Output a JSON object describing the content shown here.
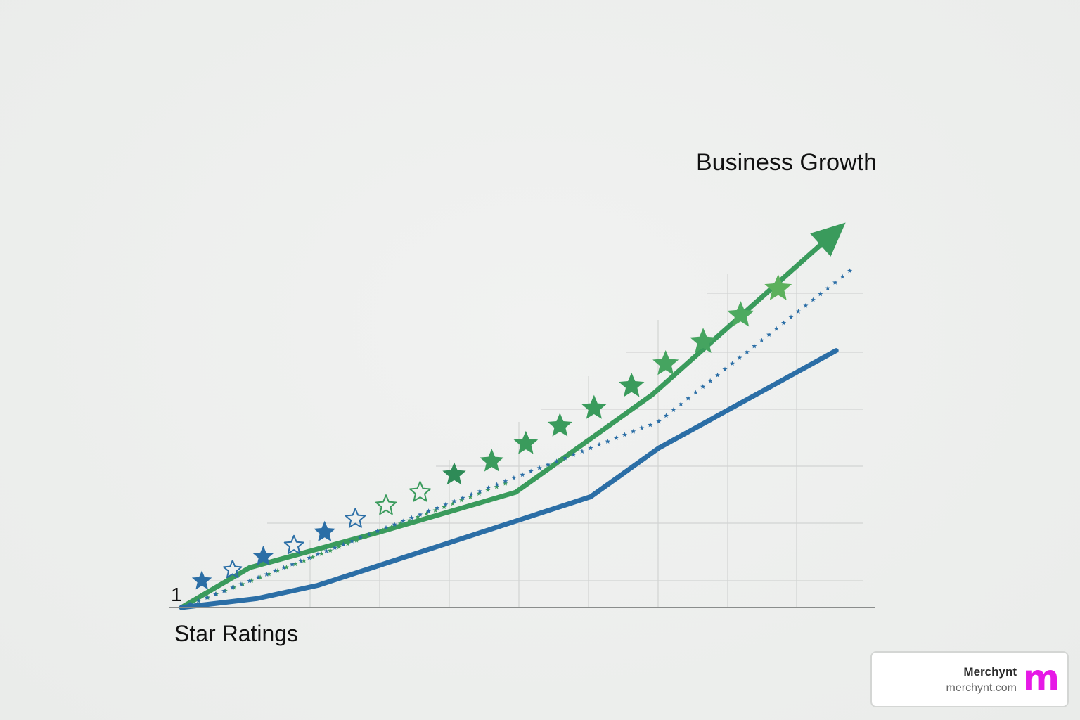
{
  "chart_data": {
    "type": "line",
    "xlabel": "Star Ratings",
    "ylabel": "",
    "y_tick_label": "1",
    "annotation": "Business Growth",
    "xlim": [
      0,
      10
    ],
    "ylim": [
      0,
      10
    ],
    "grid": true,
    "series": [
      {
        "style": "solid",
        "color": "#3a9b5c",
        "arrow": true,
        "x": [
          0,
          1.0,
          2.9,
          4.9,
          6.9,
          9.6
        ],
        "y": [
          0,
          0.9,
          1.7,
          2.6,
          4.8,
          8.5
        ]
      },
      {
        "style": "dotted-stars",
        "color": "#3a9b5c",
        "x": [
          0,
          4.75
        ],
        "y": [
          0,
          2.8
        ]
      },
      {
        "style": "dotted-stars",
        "color": "#2b6ea6",
        "x": [
          0,
          7.0,
          9.8
        ],
        "y": [
          0,
          4.2,
          7.6
        ]
      },
      {
        "style": "solid",
        "color": "#2b6ea6",
        "x": [
          0,
          1.1,
          2.0,
          3.0,
          4.9,
          6.0,
          7.0,
          9.6
        ],
        "y": [
          0,
          0.2,
          0.5,
          1.0,
          1.95,
          2.5,
          3.6,
          5.8
        ]
      }
    ],
    "star_markers": [
      {
        "x": 0.3,
        "y": 0.6,
        "fill": "#2b6ea6",
        "outline": false
      },
      {
        "x": 0.75,
        "y": 0.85,
        "fill": "#2b6ea6",
        "outline": true
      },
      {
        "x": 1.2,
        "y": 1.15,
        "fill": "#2b6ea6",
        "outline": false
      },
      {
        "x": 1.65,
        "y": 1.4,
        "fill": "#2b6ea6",
        "outline": true
      },
      {
        "x": 2.1,
        "y": 1.7,
        "fill": "#2b6ea6",
        "outline": false
      },
      {
        "x": 2.55,
        "y": 2.0,
        "fill": "#2b6ea6",
        "outline": true
      },
      {
        "x": 3.0,
        "y": 2.3,
        "fill": "#3a9b5c",
        "outline": true
      },
      {
        "x": 3.5,
        "y": 2.6,
        "fill": "#3a9b5c",
        "outline": true
      },
      {
        "x": 4.0,
        "y": 3.0,
        "fill": "#2e8b57",
        "outline": false
      },
      {
        "x": 4.55,
        "y": 3.3,
        "fill": "#3a9b5c",
        "outline": false
      },
      {
        "x": 5.05,
        "y": 3.7,
        "fill": "#3a9b5c",
        "outline": false
      },
      {
        "x": 5.55,
        "y": 4.1,
        "fill": "#3a9b5c",
        "outline": false
      },
      {
        "x": 6.05,
        "y": 4.5,
        "fill": "#3a9b5c",
        "outline": false
      },
      {
        "x": 6.6,
        "y": 5.0,
        "fill": "#3a9b5c",
        "outline": false
      },
      {
        "x": 7.1,
        "y": 5.5,
        "fill": "#45a460",
        "outline": false
      },
      {
        "x": 7.65,
        "y": 6.0,
        "fill": "#45a460",
        "outline": false
      },
      {
        "x": 8.2,
        "y": 6.6,
        "fill": "#4daa60",
        "outline": false
      },
      {
        "x": 8.75,
        "y": 7.2,
        "fill": "#5cb05c",
        "outline": false
      }
    ]
  },
  "brand": {
    "name": "Merchynt",
    "url": "merchynt.com",
    "logo_letter": "m",
    "logo_color": "#e619e6"
  }
}
